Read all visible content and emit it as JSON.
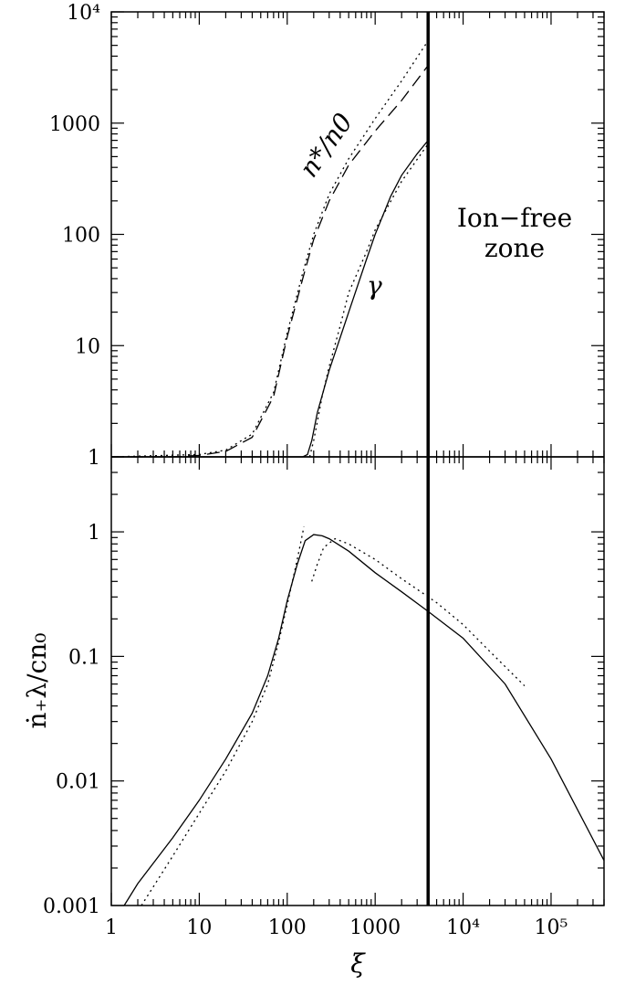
{
  "chart_data": [
    {
      "type": "line",
      "panel": "top",
      "xscale": "log",
      "yscale": "log",
      "xlim": [
        1,
        400000
      ],
      "ylim": [
        1,
        10000
      ],
      "y_tick_labels": [
        "1",
        "10",
        "100",
        "1000",
        "10⁴"
      ],
      "annotations": {
        "density_ratio": "n*/n0",
        "gamma": "γ",
        "zone_line1": "Ion−free",
        "zone_line2": "zone"
      },
      "vertical_marker_x": 4000,
      "series": [
        {
          "style": "dashed",
          "x": [
            1,
            5,
            10,
            20,
            40,
            70,
            100,
            150,
            200,
            300,
            500,
            1000,
            2000,
            4000
          ],
          "y": [
            1,
            1.0,
            1.03,
            1.12,
            1.5,
            3.5,
            12,
            40,
            90,
            200,
            420,
            850,
            1600,
            3300
          ]
        },
        {
          "style": "dotted",
          "x": [
            1,
            10,
            20,
            40,
            70,
            100,
            150,
            200,
            300,
            500,
            1000,
            2000,
            4000
          ],
          "y": [
            1,
            1.05,
            1.15,
            1.6,
            3.8,
            13,
            45,
            100,
            230,
            480,
            1100,
            2400,
            5500
          ]
        },
        {
          "style": "solid",
          "x": [
            1,
            150,
            170,
            190,
            220,
            300,
            500,
            800,
            1000,
            1500,
            2000,
            3000,
            4000
          ],
          "y": [
            1,
            1.0,
            1.05,
            1.4,
            2.5,
            6,
            20,
            60,
            100,
            220,
            340,
            530,
            700
          ]
        },
        {
          "style": "dotted",
          "x": [
            180,
            200,
            250,
            300,
            400,
            500,
            800,
            1000,
            2000,
            4000
          ],
          "y": [
            1.0,
            1.4,
            3.5,
            6.5,
            15,
            30,
            70,
            110,
            300,
            650
          ]
        }
      ]
    },
    {
      "type": "line",
      "panel": "bottom",
      "xscale": "log",
      "yscale": "log",
      "xlim": [
        1,
        400000
      ],
      "ylim": [
        0.001,
        4
      ],
      "x_tick_labels": [
        "1",
        "10",
        "100",
        "1000",
        "10⁴",
        "10⁵"
      ],
      "y_tick_labels": [
        "0.001",
        "0.01",
        "0.1",
        "1"
      ],
      "xlabel": "ξ",
      "ylabel": "ṅ₊λ/cn₀",
      "vertical_marker_x": 4000,
      "series": [
        {
          "style": "solid",
          "x": [
            1.4,
            2,
            5,
            10,
            20,
            40,
            60,
            80,
            100,
            130,
            160,
            200,
            250,
            300,
            500,
            1000,
            2000,
            4000,
            10000,
            30000,
            100000,
            400000
          ],
          "y": [
            0.001,
            0.0015,
            0.0035,
            0.007,
            0.015,
            0.035,
            0.07,
            0.14,
            0.28,
            0.55,
            0.85,
            0.95,
            0.93,
            0.88,
            0.7,
            0.47,
            0.33,
            0.23,
            0.14,
            0.06,
            0.015,
            0.0023
          ]
        },
        {
          "style": "dotted",
          "x": [
            2.2,
            5,
            10,
            20,
            40,
            60,
            80,
            100,
            130,
            155
          ],
          "y": [
            0.001,
            0.0025,
            0.0055,
            0.012,
            0.03,
            0.06,
            0.13,
            0.26,
            0.6,
            1.1
          ]
        },
        {
          "style": "dotted",
          "x": [
            190,
            220,
            260,
            350,
            500,
            1000,
            2000,
            5000,
            10000,
            20000,
            50000
          ],
          "y": [
            0.4,
            0.55,
            0.75,
            0.88,
            0.8,
            0.6,
            0.42,
            0.27,
            0.18,
            0.11,
            0.058
          ]
        }
      ]
    }
  ]
}
